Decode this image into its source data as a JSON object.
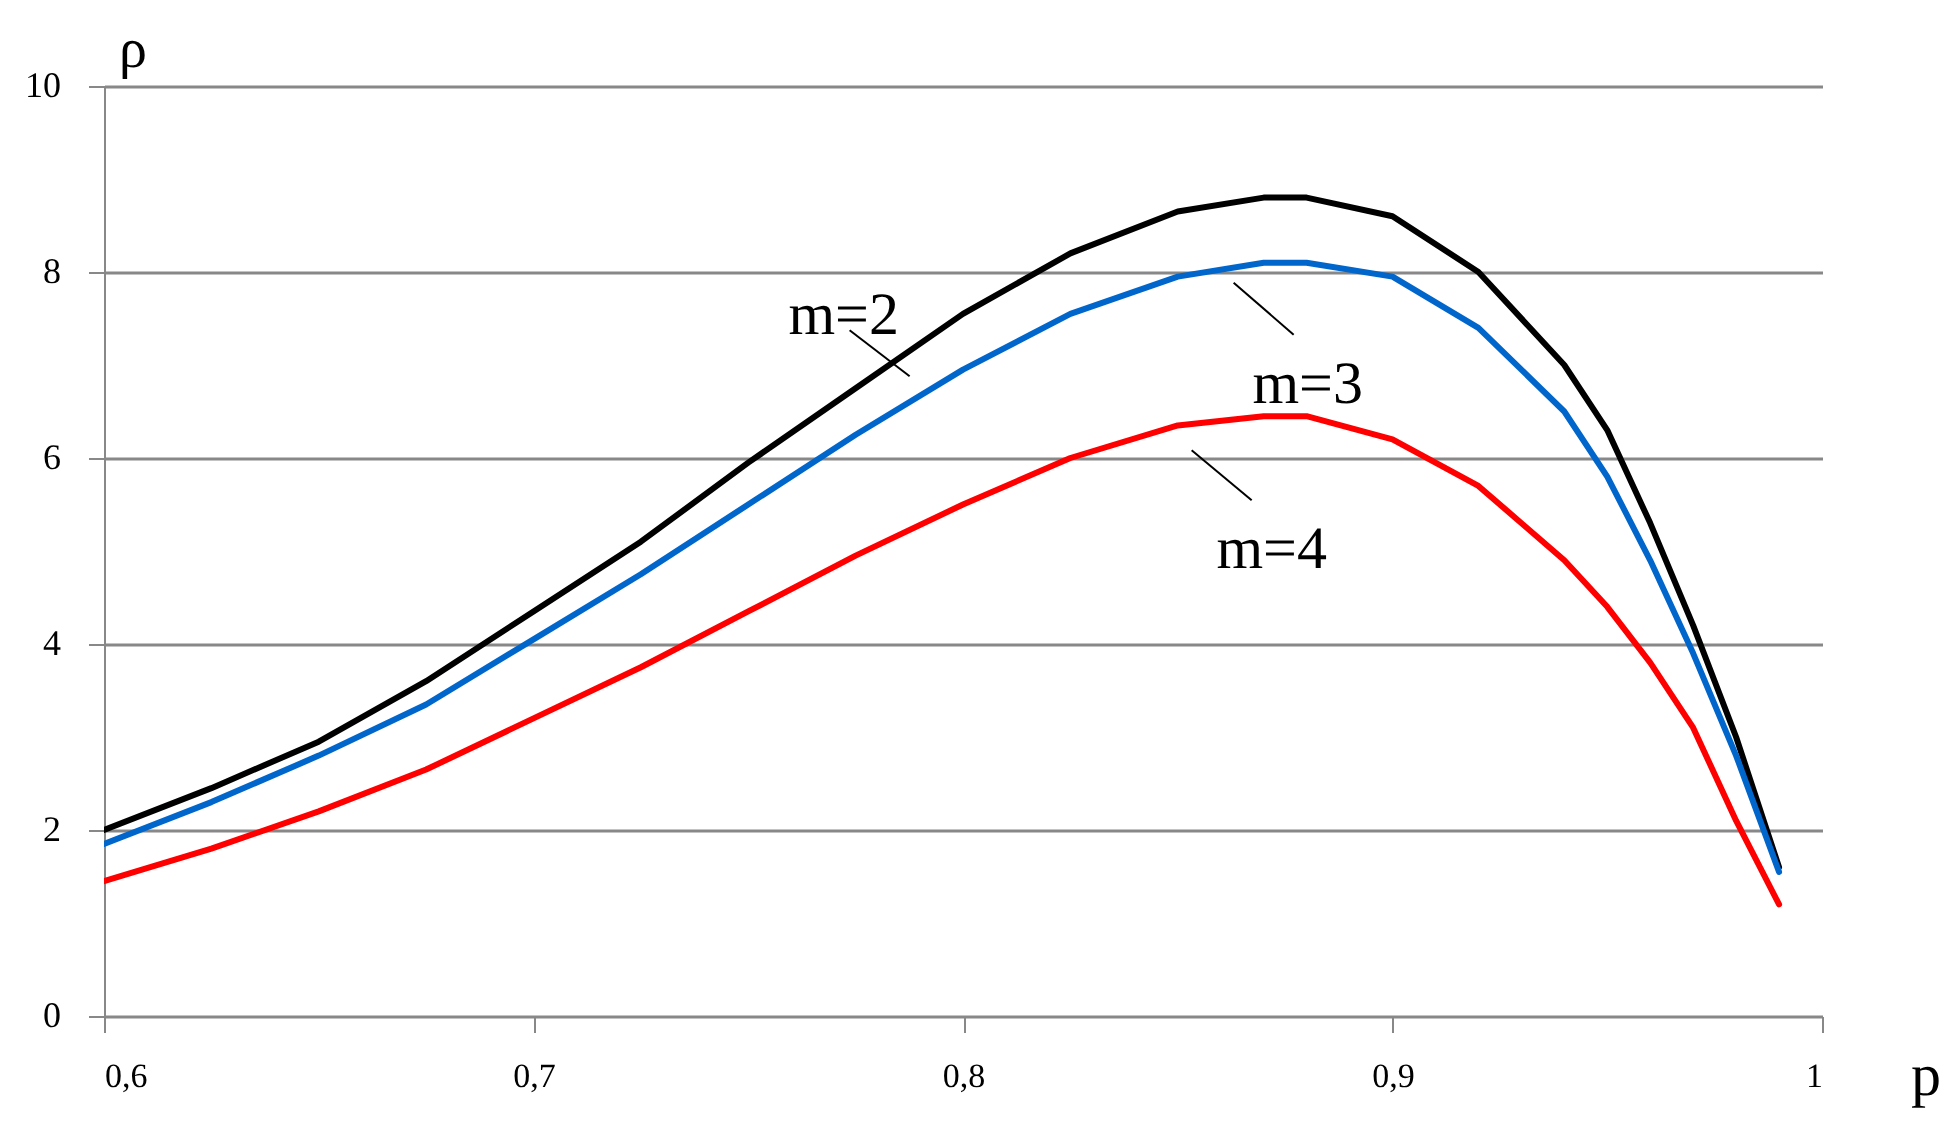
{
  "chart_data": {
    "type": "line",
    "xlabel": "p",
    "ylabel": "ρ",
    "x": [
      0.6,
      0.625,
      0.65,
      0.675,
      0.7,
      0.725,
      0.75,
      0.775,
      0.8,
      0.825,
      0.85,
      0.87,
      0.88,
      0.9,
      0.92,
      0.94,
      0.95,
      0.96,
      0.97,
      0.98,
      0.99
    ],
    "series": [
      {
        "color": "#000000",
        "values": [
          2.0,
          2.45,
          2.95,
          3.6,
          4.35,
          5.1,
          5.95,
          6.75,
          7.55,
          8.2,
          8.65,
          8.8,
          8.8,
          8.6,
          8.0,
          7.0,
          6.3,
          5.3,
          4.2,
          3.0,
          1.6
        ]
      },
      {
        "color": "#0066cc",
        "values": [
          1.85,
          2.3,
          2.8,
          3.35,
          4.05,
          4.75,
          5.5,
          6.25,
          6.95,
          7.55,
          7.95,
          8.1,
          8.1,
          7.95,
          7.4,
          6.5,
          5.8,
          4.9,
          3.9,
          2.8,
          1.55
        ]
      },
      {
        "color": "#ff0000",
        "values": [
          1.45,
          1.8,
          2.2,
          2.65,
          3.2,
          3.75,
          4.35,
          4.95,
          5.5,
          6.0,
          6.35,
          6.45,
          6.45,
          6.2,
          5.7,
          4.9,
          4.4,
          3.8,
          3.1,
          2.1,
          1.2
        ]
      }
    ],
    "annotations": [
      "m=2",
      "m=3",
      "m=4"
    ],
    "xlim": [
      0.6,
      1
    ],
    "ylim": [
      0,
      10
    ],
    "xticks": [
      {
        "value": 0.6,
        "label": "0,6"
      },
      {
        "value": 0.7,
        "label": "0,7"
      },
      {
        "value": 0.8,
        "label": "0,8"
      },
      {
        "value": 0.9,
        "label": "0,9"
      },
      {
        "value": 1,
        "label": "1"
      }
    ],
    "yticks": [
      0,
      2,
      4,
      6,
      8,
      10
    ],
    "grid": "y",
    "legend": false,
    "marker": "none",
    "line_style": "solid"
  }
}
